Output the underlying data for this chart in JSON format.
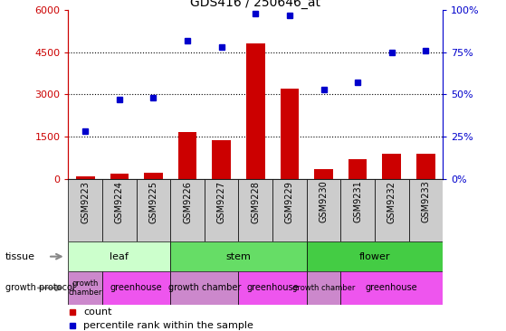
{
  "title": "GDS416 / 250646_at",
  "samples": [
    "GSM9223",
    "GSM9224",
    "GSM9225",
    "GSM9226",
    "GSM9227",
    "GSM9228",
    "GSM9229",
    "GSM9230",
    "GSM9231",
    "GSM9232",
    "GSM9233"
  ],
  "counts": [
    80,
    180,
    220,
    1650,
    1380,
    4820,
    3200,
    350,
    700,
    900,
    900
  ],
  "percentiles": [
    28,
    47,
    48,
    82,
    78,
    98,
    97,
    53,
    57,
    75,
    76
  ],
  "tissue_groups": [
    {
      "label": "leaf",
      "start": 0,
      "end": 3,
      "color": "#ccffcc"
    },
    {
      "label": "stem",
      "start": 3,
      "end": 7,
      "color": "#66dd66"
    },
    {
      "label": "flower",
      "start": 7,
      "end": 11,
      "color": "#44cc44"
    }
  ],
  "protocol_groups": [
    {
      "label": "growth\nchamber",
      "start": 0,
      "end": 1,
      "color": "#cc88cc"
    },
    {
      "label": "greenhouse",
      "start": 1,
      "end": 3,
      "color": "#ee55ee"
    },
    {
      "label": "growth chamber",
      "start": 3,
      "end": 5,
      "color": "#cc88cc"
    },
    {
      "label": "greenhouse",
      "start": 5,
      "end": 7,
      "color": "#ee55ee"
    },
    {
      "label": "growth chamber",
      "start": 7,
      "end": 8,
      "color": "#cc88cc"
    },
    {
      "label": "greenhouse",
      "start": 8,
      "end": 11,
      "color": "#ee55ee"
    }
  ],
  "bar_color": "#cc0000",
  "dot_color": "#0000cc",
  "ylim_left": [
    0,
    6000
  ],
  "ylim_right": [
    0,
    100
  ],
  "yticks_left": [
    0,
    1500,
    3000,
    4500,
    6000
  ],
  "yticks_right": [
    0,
    25,
    50,
    75,
    100
  ],
  "grid_color": "#000000",
  "bg_color": "#ffffff",
  "left_axis_color": "#cc0000",
  "right_axis_color": "#0000cc",
  "sample_bg": "#cccccc"
}
